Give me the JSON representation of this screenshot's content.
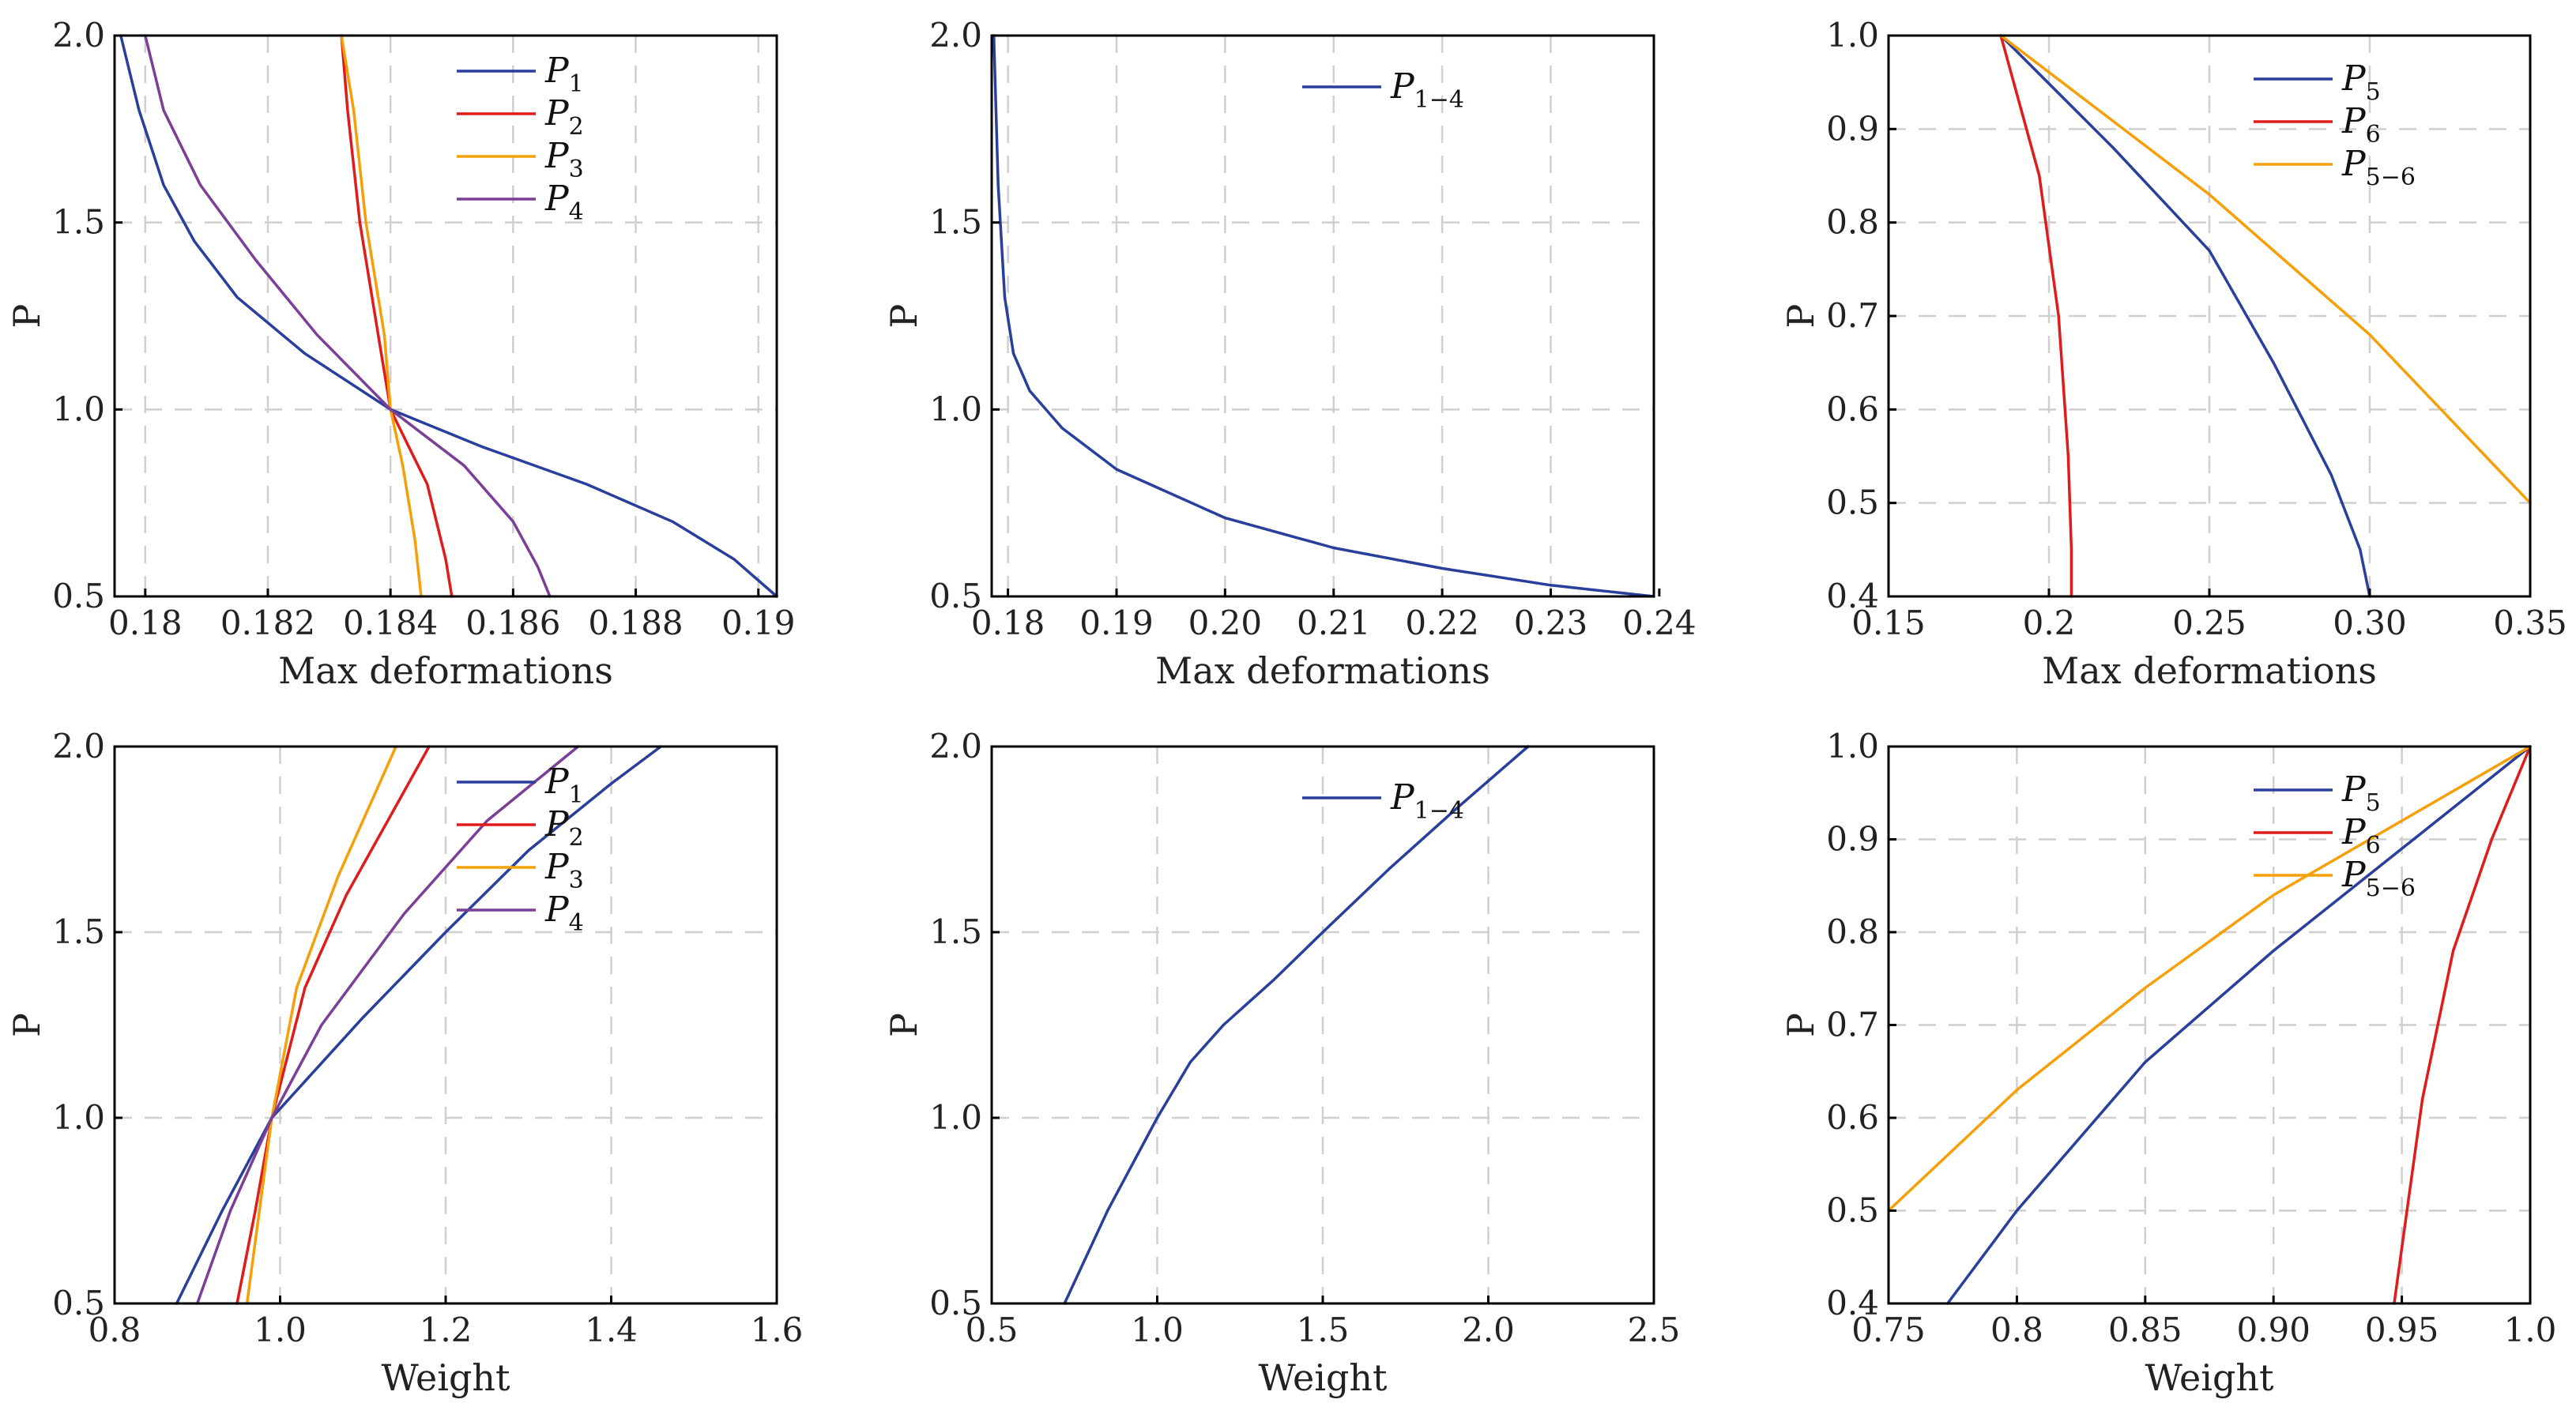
{
  "chart_data": [
    {
      "type": "line",
      "xlabel": "Max deformations",
      "ylabel": "P",
      "xlim": [
        0.1795,
        0.1903
      ],
      "ylim": [
        0.5,
        2.0
      ],
      "xticks": [
        0.18,
        0.182,
        0.184,
        0.186,
        0.188,
        0.19
      ],
      "xtick_labels": [
        "0.18",
        "0.182",
        "0.184",
        "0.186",
        "0.188",
        "0.19"
      ],
      "yticks": [
        0.5,
        1.0,
        1.5,
        2.0
      ],
      "ytick_labels": [
        "0.5",
        "1.0",
        "1.5",
        "2.0"
      ],
      "legend_position": "top-right",
      "series": [
        {
          "name": "P",
          "sub": "1",
          "color": "#2a3f9b",
          "x": [
            0.1796,
            0.1799,
            0.1803,
            0.1808,
            0.1815,
            0.1826,
            0.184,
            0.1855,
            0.1872,
            0.1886,
            0.1896,
            0.1903
          ],
          "y": [
            2.0,
            1.8,
            1.6,
            1.45,
            1.3,
            1.15,
            1.0,
            0.9,
            0.8,
            0.7,
            0.6,
            0.5
          ]
        },
        {
          "name": "P",
          "sub": "2",
          "color": "#e01b1b",
          "x": [
            0.1832,
            0.1833,
            0.1835,
            0.1838,
            0.184,
            0.1843,
            0.1846,
            0.1849,
            0.185
          ],
          "y": [
            2.0,
            1.8,
            1.5,
            1.2,
            1.0,
            0.9,
            0.8,
            0.6,
            0.5
          ]
        },
        {
          "name": "P",
          "sub": "3",
          "color": "#f5a00a",
          "x": [
            0.1832,
            0.1834,
            0.1836,
            0.1839,
            0.184,
            0.1842,
            0.1844,
            0.1845
          ],
          "y": [
            2.0,
            1.8,
            1.5,
            1.2,
            1.0,
            0.85,
            0.65,
            0.5
          ]
        },
        {
          "name": "P",
          "sub": "4",
          "color": "#7b3f98",
          "x": [
            0.18,
            0.1803,
            0.1809,
            0.1818,
            0.1828,
            0.184,
            0.1852,
            0.186,
            0.1864,
            0.1866
          ],
          "y": [
            2.0,
            1.8,
            1.6,
            1.4,
            1.2,
            1.0,
            0.85,
            0.7,
            0.58,
            0.5
          ]
        }
      ]
    },
    {
      "type": "line",
      "xlabel": "Max deformations",
      "ylabel": "P",
      "xlim": [
        0.1785,
        0.2395
      ],
      "ylim": [
        0.5,
        2.0
      ],
      "xticks": [
        0.18,
        0.19,
        0.2,
        0.21,
        0.22,
        0.23,
        0.24
      ],
      "xtick_labels": [
        "0.18",
        "0.19",
        "0.20",
        "0.21",
        "0.22",
        "0.23",
        "0.24"
      ],
      "yticks": [
        0.5,
        1.0,
        1.5,
        2.0
      ],
      "ytick_labels": [
        "0.5",
        "1.0",
        "1.5",
        "2.0"
      ],
      "legend_position": "top-right",
      "series": [
        {
          "name": "P",
          "sub": "1−4",
          "color": "#2a3f9b",
          "x": [
            0.1787,
            0.1791,
            0.1797,
            0.1805,
            0.182,
            0.185,
            0.19,
            0.2,
            0.21,
            0.22,
            0.23,
            0.2395
          ],
          "y": [
            2.0,
            1.6,
            1.3,
            1.15,
            1.05,
            0.95,
            0.84,
            0.71,
            0.63,
            0.575,
            0.53,
            0.5
          ]
        }
      ]
    },
    {
      "type": "line",
      "xlabel": "Max deformations",
      "ylabel": "P",
      "xlim": [
        0.15,
        0.35
      ],
      "ylim": [
        0.4,
        1.0
      ],
      "xticks": [
        0.15,
        0.2,
        0.25,
        0.3,
        0.35
      ],
      "xtick_labels": [
        "0.15",
        "0.2",
        "0.25",
        "0.30",
        "0.35"
      ],
      "yticks": [
        0.4,
        0.5,
        0.6,
        0.7,
        0.8,
        0.9,
        1.0
      ],
      "ytick_labels": [
        "0.4",
        "0.5",
        "0.6",
        "0.7",
        "0.8",
        "0.9",
        "1.0"
      ],
      "legend_position": "top-right",
      "series": [
        {
          "name": "P",
          "sub": "5",
          "color": "#2a3f9b",
          "x": [
            0.185,
            0.22,
            0.25,
            0.27,
            0.288,
            0.297,
            0.3
          ],
          "y": [
            1.0,
            0.88,
            0.77,
            0.65,
            0.53,
            0.45,
            0.4
          ]
        },
        {
          "name": "P",
          "sub": "6",
          "color": "#e01b1b",
          "x": [
            0.185,
            0.197,
            0.203,
            0.206,
            0.207,
            0.207
          ],
          "y": [
            1.0,
            0.85,
            0.7,
            0.55,
            0.45,
            0.4
          ]
        },
        {
          "name": "P",
          "sub": "5−6",
          "color": "#f5a00a",
          "x": [
            0.185,
            0.25,
            0.3,
            0.35
          ],
          "y": [
            1.0,
            0.83,
            0.68,
            0.5
          ]
        }
      ]
    },
    {
      "type": "line",
      "xlabel": "Weight",
      "ylabel": "P",
      "xlim": [
        0.8,
        1.6
      ],
      "ylim": [
        0.5,
        2.0
      ],
      "xticks": [
        0.8,
        1.0,
        1.2,
        1.4,
        1.6
      ],
      "xtick_labels": [
        "0.8",
        "1.0",
        "1.2",
        "1.4",
        "1.6"
      ],
      "yticks": [
        0.5,
        1.0,
        1.5,
        2.0
      ],
      "ytick_labels": [
        "0.5",
        "1.0",
        "1.5",
        "2.0"
      ],
      "legend_position": "top-right",
      "series": [
        {
          "name": "P",
          "sub": "1",
          "color": "#2a3f9b",
          "x": [
            0.875,
            0.93,
            0.99,
            1.1,
            1.2,
            1.3,
            1.4,
            1.46
          ],
          "y": [
            0.5,
            0.75,
            1.0,
            1.27,
            1.5,
            1.72,
            1.9,
            2.0
          ]
        },
        {
          "name": "P",
          "sub": "2",
          "color": "#e01b1b",
          "x": [
            0.948,
            0.97,
            0.99,
            1.03,
            1.08,
            1.13,
            1.18
          ],
          "y": [
            0.5,
            0.75,
            1.0,
            1.35,
            1.6,
            1.8,
            2.0
          ]
        },
        {
          "name": "P",
          "sub": "3",
          "color": "#f5a00a",
          "x": [
            0.96,
            0.975,
            0.99,
            1.02,
            1.07,
            1.14
          ],
          "y": [
            0.5,
            0.75,
            1.0,
            1.35,
            1.65,
            2.0
          ]
        },
        {
          "name": "P",
          "sub": "4",
          "color": "#7b3f98",
          "x": [
            0.9,
            0.94,
            0.99,
            1.05,
            1.15,
            1.25,
            1.36
          ],
          "y": [
            0.5,
            0.75,
            1.0,
            1.25,
            1.55,
            1.8,
            2.0
          ]
        }
      ]
    },
    {
      "type": "line",
      "xlabel": "Weight",
      "ylabel": "P",
      "xlim": [
        0.5,
        2.5
      ],
      "ylim": [
        0.5,
        2.0
      ],
      "xticks": [
        0.5,
        1.0,
        1.5,
        2.0,
        2.5
      ],
      "xtick_labels": [
        "0.5",
        "1.0",
        "1.5",
        "2.0",
        "2.5"
      ],
      "yticks": [
        0.5,
        1.0,
        1.5,
        2.0
      ],
      "ytick_labels": [
        "0.5",
        "1.0",
        "1.5",
        "2.0"
      ],
      "legend_position": "top-right",
      "series": [
        {
          "name": "P",
          "sub": "1−4",
          "color": "#2a3f9b",
          "x": [
            0.72,
            0.85,
            1.0,
            1.1,
            1.2,
            1.35,
            1.5,
            1.7,
            1.9,
            2.12
          ],
          "y": [
            0.5,
            0.75,
            1.0,
            1.15,
            1.25,
            1.37,
            1.5,
            1.67,
            1.83,
            2.0
          ]
        }
      ]
    },
    {
      "type": "line",
      "xlabel": "Weight",
      "ylabel": "P",
      "xlim": [
        0.75,
        1.0
      ],
      "ylim": [
        0.4,
        1.0
      ],
      "xticks": [
        0.75,
        0.8,
        0.85,
        0.9,
        0.95,
        1.0
      ],
      "xtick_labels": [
        "0.75",
        "0.8",
        "0.85",
        "0.90",
        "0.95",
        "1.0"
      ],
      "yticks": [
        0.4,
        0.5,
        0.6,
        0.7,
        0.8,
        0.9,
        1.0
      ],
      "ytick_labels": [
        "0.4",
        "0.5",
        "0.6",
        "0.7",
        "0.8",
        "0.9",
        "1.0"
      ],
      "legend_position": "top-right",
      "series": [
        {
          "name": "P",
          "sub": "5",
          "color": "#2a3f9b",
          "x": [
            0.773,
            0.8,
            0.85,
            0.9,
            0.95,
            1.0
          ],
          "y": [
            0.4,
            0.5,
            0.66,
            0.78,
            0.89,
            1.0
          ]
        },
        {
          "name": "P",
          "sub": "6",
          "color": "#e01b1b",
          "x": [
            0.947,
            0.952,
            0.958,
            0.97,
            0.985,
            1.0
          ],
          "y": [
            0.4,
            0.5,
            0.62,
            0.78,
            0.9,
            1.0
          ]
        },
        {
          "name": "P",
          "sub": "5−6",
          "color": "#f5a00a",
          "x": [
            0.75,
            0.8,
            0.85,
            0.9,
            0.95,
            1.0
          ],
          "y": [
            0.5,
            0.63,
            0.74,
            0.84,
            0.92,
            1.0
          ]
        }
      ]
    }
  ]
}
